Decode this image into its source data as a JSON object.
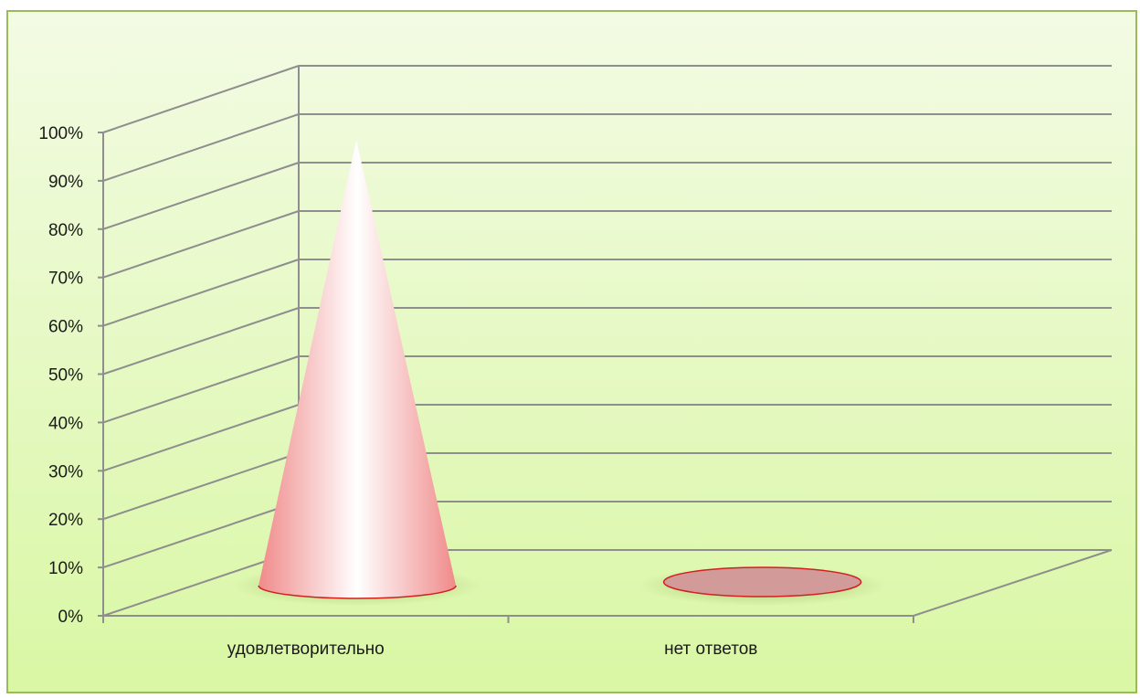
{
  "chart_data": {
    "type": "bar",
    "style": "3d-cone",
    "categories": [
      "удовлетворительно",
      "нет ответов"
    ],
    "values": [
      100,
      0
    ],
    "ylim": [
      0,
      100
    ],
    "y_ticks": [
      "0%",
      "10%",
      "20%",
      "30%",
      "40%",
      "50%",
      "60%",
      "70%",
      "80%",
      "90%",
      "100%"
    ],
    "grid": true,
    "colors": {
      "background_top": "#f3fbe4",
      "background_bottom": "#d9f7a4",
      "frame": "#9bbb59",
      "cone_edge": "#f08a8a",
      "cone_mid": "#ffffff",
      "empty_base": "#d39a9a",
      "empty_base_stroke": "#d22020",
      "grid": "#8e8e8e"
    }
  }
}
